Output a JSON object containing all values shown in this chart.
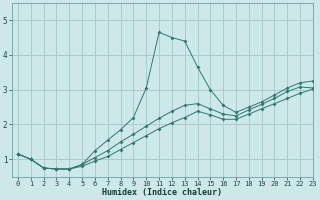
{
  "xlabel": "Humidex (Indice chaleur)",
  "bg_color": "#cce8e8",
  "grid_color": "#aacccc",
  "line_color": "#2d7a6e",
  "line1_x": [
    0,
    1,
    2,
    3,
    4,
    5,
    6,
    7,
    8,
    9,
    10,
    11,
    12,
    13,
    14,
    15,
    16,
    17,
    18,
    19,
    20,
    21,
    22,
    23
  ],
  "line1_y": [
    1.15,
    1.0,
    0.75,
    0.72,
    0.72,
    0.85,
    1.25,
    1.55,
    1.85,
    2.2,
    3.05,
    4.65,
    4.5,
    4.4,
    3.65,
    3.0,
    2.55,
    2.35,
    2.5,
    2.65,
    2.85,
    3.05,
    3.2,
    3.25
  ],
  "line2_x": [
    0,
    1,
    2,
    3,
    4,
    5,
    6,
    7,
    8,
    9,
    10,
    11,
    12,
    13,
    14,
    15,
    16,
    17,
    18,
    19,
    20,
    21,
    22,
    23
  ],
  "line2_y": [
    1.15,
    1.0,
    0.75,
    0.72,
    0.72,
    0.85,
    1.05,
    1.25,
    1.5,
    1.72,
    1.95,
    2.18,
    2.38,
    2.55,
    2.6,
    2.45,
    2.3,
    2.25,
    2.42,
    2.58,
    2.75,
    2.95,
    3.08,
    3.05
  ],
  "line3_x": [
    0,
    1,
    2,
    3,
    4,
    5,
    6,
    7,
    8,
    9,
    10,
    11,
    12,
    13,
    14,
    15,
    16,
    17,
    18,
    19,
    20,
    21,
    22,
    23
  ],
  "line3_y": [
    1.15,
    1.0,
    0.75,
    0.72,
    0.72,
    0.8,
    0.95,
    1.08,
    1.28,
    1.48,
    1.68,
    1.88,
    2.05,
    2.2,
    2.38,
    2.28,
    2.15,
    2.15,
    2.3,
    2.45,
    2.6,
    2.75,
    2.9,
    3.02
  ],
  "xlim": [
    -0.5,
    23
  ],
  "ylim": [
    0.5,
    5.5
  ],
  "xticks": [
    0,
    1,
    2,
    3,
    4,
    5,
    6,
    7,
    8,
    9,
    10,
    11,
    12,
    13,
    14,
    15,
    16,
    17,
    18,
    19,
    20,
    21,
    22,
    23
  ],
  "yticks": [
    1,
    2,
    3,
    4,
    5
  ],
  "tick_fontsize": 5,
  "xlabel_fontsize": 6
}
